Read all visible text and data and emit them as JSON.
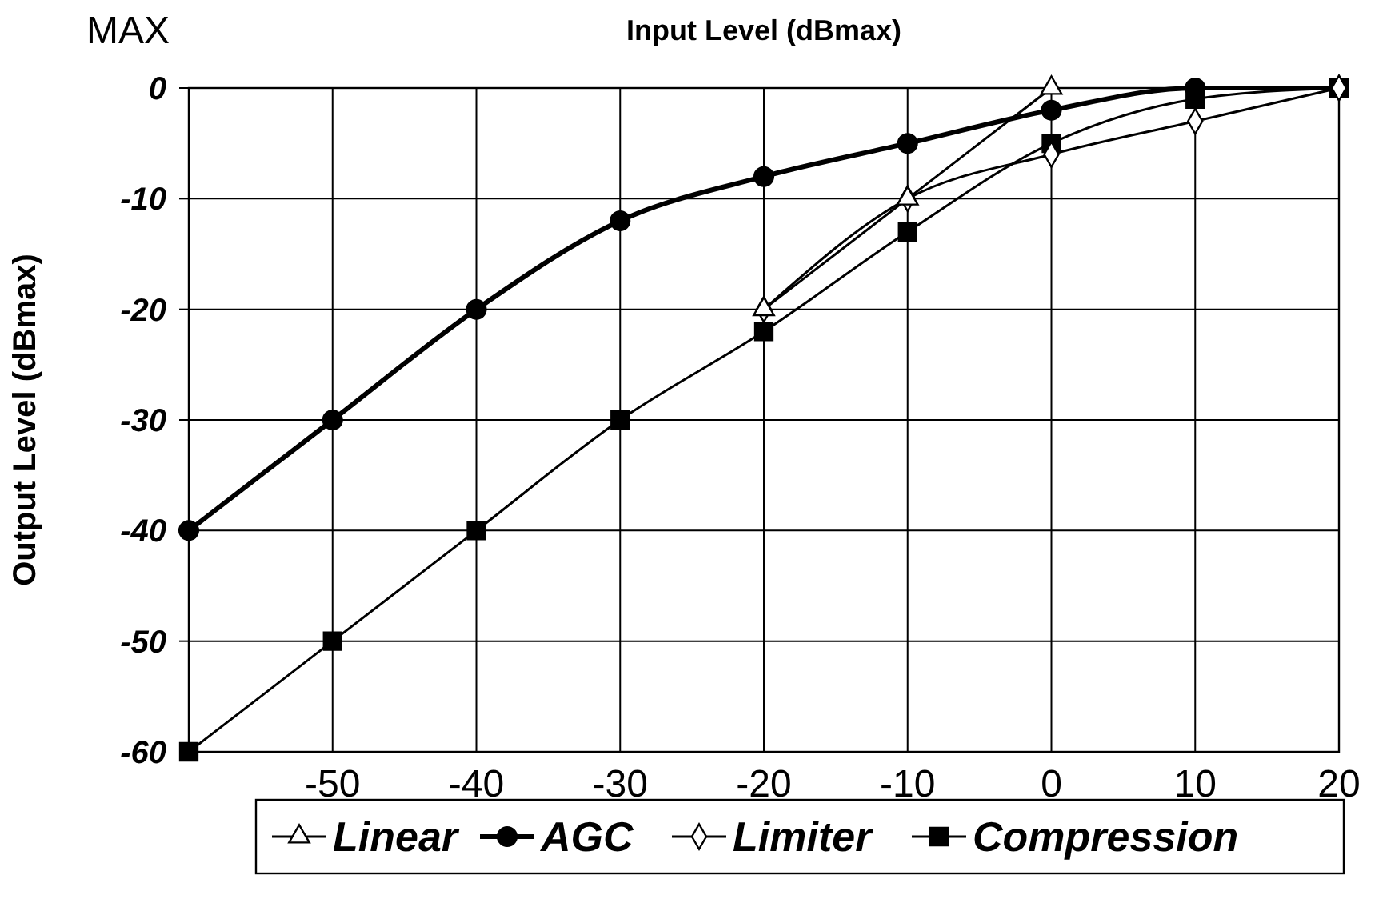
{
  "chart_data": {
    "type": "line",
    "xlabel": "Input Level (dBmax)",
    "ylabel": "Output Level (dBmax)",
    "annotations": [
      "MAX"
    ],
    "x": [
      -60,
      -50,
      -40,
      -30,
      -20,
      -10,
      0,
      10,
      20
    ],
    "xlim": [
      -60,
      20
    ],
    "xticks": [
      {
        "value": -60,
        "label": null
      },
      -50,
      -40,
      -30,
      -20,
      -10,
      0,
      10,
      20
    ],
    "ylim": [
      -60,
      0
    ],
    "yticks": [
      -60,
      -50,
      -40,
      -30,
      -20,
      -10,
      0
    ],
    "grid": true,
    "legend": "bottom",
    "series": [
      {
        "name": "Linear",
        "color": "#000000",
        "marker": "triangle",
        "x": [
          -20,
          -10,
          0
        ],
        "values": [
          -20,
          -10,
          0
        ]
      },
      {
        "name": "AGC",
        "color": "#000000",
        "marker": "circle",
        "values": [
          -40,
          -30,
          -20,
          -12,
          -8,
          -5,
          -2,
          0,
          0
        ]
      },
      {
        "name": "Limiter",
        "color": "#000000",
        "marker": "diamond",
        "values": [
          null,
          null,
          null,
          null,
          -20,
          -10,
          -6,
          -3,
          0
        ]
      },
      {
        "name": "Compression",
        "color": "#000000",
        "marker": "square",
        "values": [
          -60,
          -50,
          -40,
          -30,
          -22,
          -13,
          -5,
          -1,
          0
        ]
      }
    ]
  }
}
